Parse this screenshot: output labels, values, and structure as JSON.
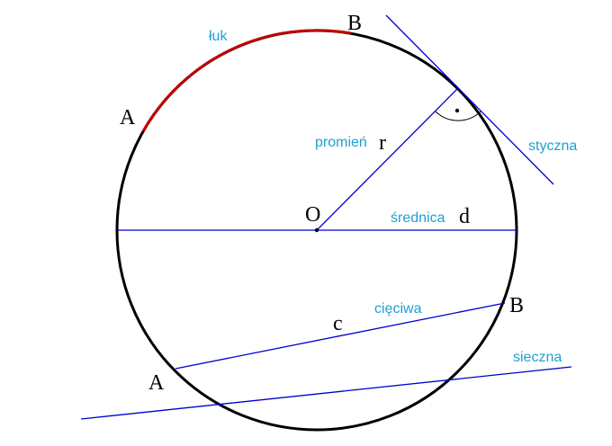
{
  "labels": {
    "arc_point_a": "A",
    "arc_point_b": "B",
    "arc": "łuk",
    "center": "O",
    "radius_name": "promień",
    "radius_symbol": "r",
    "tangent": "styczna",
    "diameter_name": "średnica",
    "diameter_symbol": "d",
    "chord_name": "cięciwa",
    "chord_symbol": "c",
    "chord_point_a": "A",
    "chord_point_b": "B",
    "secant": "sieczna"
  },
  "colors": {
    "circle": "#000000",
    "arc": "#c00000",
    "lines": "#0000cc",
    "term_labels": "#1ea0d2",
    "point_labels": "#000000"
  }
}
